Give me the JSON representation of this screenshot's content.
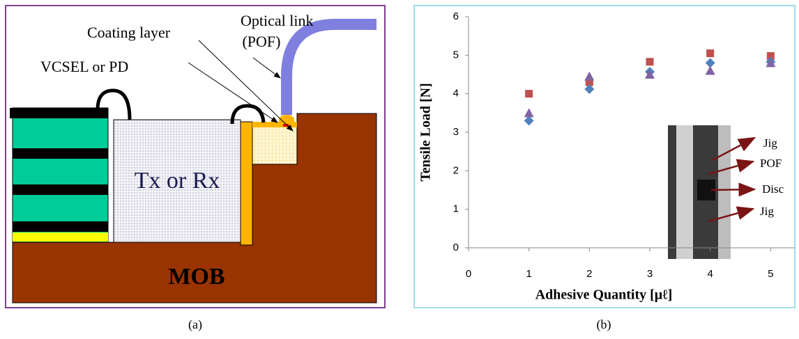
{
  "diagram": {
    "labels": {
      "optical_link": "Optical link",
      "pof": "(POF)",
      "coating": "Coating layer",
      "vcsel": "VCSEL or PD",
      "txrx": "Tx or Rx",
      "mob": "MOB"
    },
    "caption": "(a)"
  },
  "chart_data": {
    "type": "scatter",
    "caption": "(b)",
    "x_label": "Adhesive Quantity [μℓ]",
    "y_label": "Tensile  Load [N]",
    "x": [
      1,
      2,
      3,
      4,
      5
    ],
    "series": [
      {
        "color": "#c0504d",
        "marker": "square",
        "values": [
          4.0,
          4.3,
          4.83,
          5.05,
          4.98
        ]
      },
      {
        "color": "#4f81bd",
        "marker": "diamond",
        "values": [
          3.3,
          4.12,
          4.57,
          4.8,
          4.83
        ]
      },
      {
        "color": "#8064a2",
        "marker": "triangle",
        "values": [
          3.5,
          4.45,
          4.5,
          4.6,
          4.8
        ]
      }
    ],
    "xlim": [
      0,
      5.4
    ],
    "ylim": [
      0,
      6
    ],
    "xticks": [
      0,
      1,
      2,
      3,
      4,
      5
    ],
    "yticks": [
      0,
      1,
      2,
      3,
      4,
      5,
      6
    ],
    "grid": false,
    "annotations": [
      "Jig",
      "POF",
      "Disc",
      "Jig"
    ]
  }
}
